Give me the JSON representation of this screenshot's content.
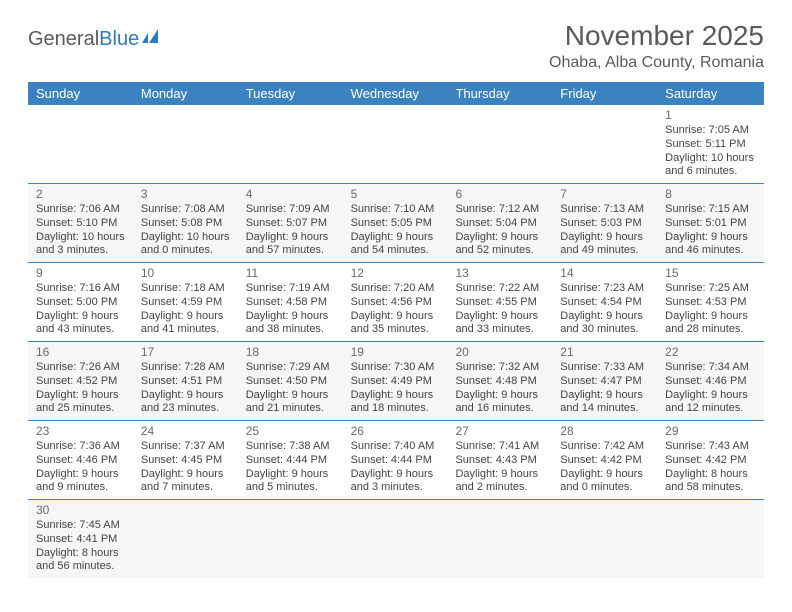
{
  "brand": {
    "general": "General",
    "blue": "Blue"
  },
  "title": "November 2025",
  "location": "Ohaba, Alba County, Romania",
  "colors": {
    "header_bg": "#3b83c0",
    "header_text": "#ffffff",
    "border": "#3b83c0",
    "alt_bg": "#f6f6f6",
    "text": "#444444",
    "title_text": "#5a5a5a"
  },
  "day_headers": [
    "Sunday",
    "Monday",
    "Tuesday",
    "Wednesday",
    "Thursday",
    "Friday",
    "Saturday"
  ],
  "weeks": [
    [
      null,
      null,
      null,
      null,
      null,
      null,
      {
        "n": "1",
        "sr": "Sunrise: 7:05 AM",
        "ss": "Sunset: 5:11 PM",
        "d1": "Daylight: 10 hours",
        "d2": "and 6 minutes."
      }
    ],
    [
      {
        "n": "2",
        "sr": "Sunrise: 7:06 AM",
        "ss": "Sunset: 5:10 PM",
        "d1": "Daylight: 10 hours",
        "d2": "and 3 minutes."
      },
      {
        "n": "3",
        "sr": "Sunrise: 7:08 AM",
        "ss": "Sunset: 5:08 PM",
        "d1": "Daylight: 10 hours",
        "d2": "and 0 minutes."
      },
      {
        "n": "4",
        "sr": "Sunrise: 7:09 AM",
        "ss": "Sunset: 5:07 PM",
        "d1": "Daylight: 9 hours",
        "d2": "and 57 minutes."
      },
      {
        "n": "5",
        "sr": "Sunrise: 7:10 AM",
        "ss": "Sunset: 5:05 PM",
        "d1": "Daylight: 9 hours",
        "d2": "and 54 minutes."
      },
      {
        "n": "6",
        "sr": "Sunrise: 7:12 AM",
        "ss": "Sunset: 5:04 PM",
        "d1": "Daylight: 9 hours",
        "d2": "and 52 minutes."
      },
      {
        "n": "7",
        "sr": "Sunrise: 7:13 AM",
        "ss": "Sunset: 5:03 PM",
        "d1": "Daylight: 9 hours",
        "d2": "and 49 minutes."
      },
      {
        "n": "8",
        "sr": "Sunrise: 7:15 AM",
        "ss": "Sunset: 5:01 PM",
        "d1": "Daylight: 9 hours",
        "d2": "and 46 minutes."
      }
    ],
    [
      {
        "n": "9",
        "sr": "Sunrise: 7:16 AM",
        "ss": "Sunset: 5:00 PM",
        "d1": "Daylight: 9 hours",
        "d2": "and 43 minutes."
      },
      {
        "n": "10",
        "sr": "Sunrise: 7:18 AM",
        "ss": "Sunset: 4:59 PM",
        "d1": "Daylight: 9 hours",
        "d2": "and 41 minutes."
      },
      {
        "n": "11",
        "sr": "Sunrise: 7:19 AM",
        "ss": "Sunset: 4:58 PM",
        "d1": "Daylight: 9 hours",
        "d2": "and 38 minutes."
      },
      {
        "n": "12",
        "sr": "Sunrise: 7:20 AM",
        "ss": "Sunset: 4:56 PM",
        "d1": "Daylight: 9 hours",
        "d2": "and 35 minutes."
      },
      {
        "n": "13",
        "sr": "Sunrise: 7:22 AM",
        "ss": "Sunset: 4:55 PM",
        "d1": "Daylight: 9 hours",
        "d2": "and 33 minutes."
      },
      {
        "n": "14",
        "sr": "Sunrise: 7:23 AM",
        "ss": "Sunset: 4:54 PM",
        "d1": "Daylight: 9 hours",
        "d2": "and 30 minutes."
      },
      {
        "n": "15",
        "sr": "Sunrise: 7:25 AM",
        "ss": "Sunset: 4:53 PM",
        "d1": "Daylight: 9 hours",
        "d2": "and 28 minutes."
      }
    ],
    [
      {
        "n": "16",
        "sr": "Sunrise: 7:26 AM",
        "ss": "Sunset: 4:52 PM",
        "d1": "Daylight: 9 hours",
        "d2": "and 25 minutes."
      },
      {
        "n": "17",
        "sr": "Sunrise: 7:28 AM",
        "ss": "Sunset: 4:51 PM",
        "d1": "Daylight: 9 hours",
        "d2": "and 23 minutes."
      },
      {
        "n": "18",
        "sr": "Sunrise: 7:29 AM",
        "ss": "Sunset: 4:50 PM",
        "d1": "Daylight: 9 hours",
        "d2": "and 21 minutes."
      },
      {
        "n": "19",
        "sr": "Sunrise: 7:30 AM",
        "ss": "Sunset: 4:49 PM",
        "d1": "Daylight: 9 hours",
        "d2": "and 18 minutes."
      },
      {
        "n": "20",
        "sr": "Sunrise: 7:32 AM",
        "ss": "Sunset: 4:48 PM",
        "d1": "Daylight: 9 hours",
        "d2": "and 16 minutes."
      },
      {
        "n": "21",
        "sr": "Sunrise: 7:33 AM",
        "ss": "Sunset: 4:47 PM",
        "d1": "Daylight: 9 hours",
        "d2": "and 14 minutes."
      },
      {
        "n": "22",
        "sr": "Sunrise: 7:34 AM",
        "ss": "Sunset: 4:46 PM",
        "d1": "Daylight: 9 hours",
        "d2": "and 12 minutes."
      }
    ],
    [
      {
        "n": "23",
        "sr": "Sunrise: 7:36 AM",
        "ss": "Sunset: 4:46 PM",
        "d1": "Daylight: 9 hours",
        "d2": "and 9 minutes."
      },
      {
        "n": "24",
        "sr": "Sunrise: 7:37 AM",
        "ss": "Sunset: 4:45 PM",
        "d1": "Daylight: 9 hours",
        "d2": "and 7 minutes."
      },
      {
        "n": "25",
        "sr": "Sunrise: 7:38 AM",
        "ss": "Sunset: 4:44 PM",
        "d1": "Daylight: 9 hours",
        "d2": "and 5 minutes."
      },
      {
        "n": "26",
        "sr": "Sunrise: 7:40 AM",
        "ss": "Sunset: 4:44 PM",
        "d1": "Daylight: 9 hours",
        "d2": "and 3 minutes."
      },
      {
        "n": "27",
        "sr": "Sunrise: 7:41 AM",
        "ss": "Sunset: 4:43 PM",
        "d1": "Daylight: 9 hours",
        "d2": "and 2 minutes."
      },
      {
        "n": "28",
        "sr": "Sunrise: 7:42 AM",
        "ss": "Sunset: 4:42 PM",
        "d1": "Daylight: 9 hours",
        "d2": "and 0 minutes."
      },
      {
        "n": "29",
        "sr": "Sunrise: 7:43 AM",
        "ss": "Sunset: 4:42 PM",
        "d1": "Daylight: 8 hours",
        "d2": "and 58 minutes."
      }
    ],
    [
      {
        "n": "30",
        "sr": "Sunrise: 7:45 AM",
        "ss": "Sunset: 4:41 PM",
        "d1": "Daylight: 8 hours",
        "d2": "and 56 minutes."
      },
      null,
      null,
      null,
      null,
      null,
      null
    ]
  ]
}
